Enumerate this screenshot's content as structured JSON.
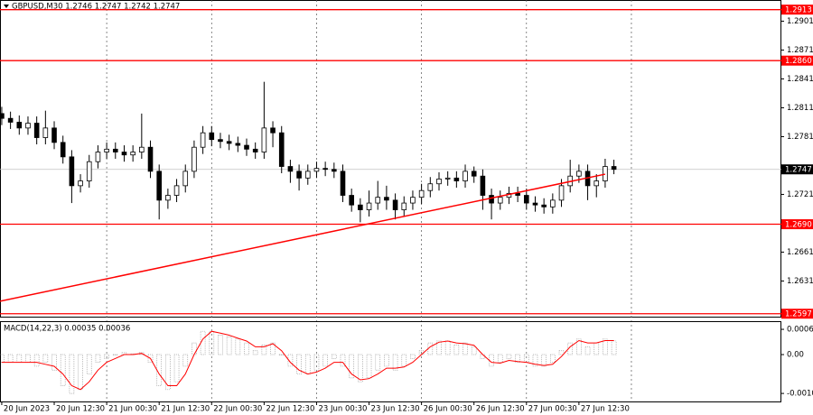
{
  "chart_data": [
    {
      "type": "candlestick",
      "title": "GBPUSD,M30  1.2746 1.2747 1.2742 1.2747",
      "color": "#000000",
      "level_color": "#ff0000",
      "open": [
        1.2805,
        1.28,
        1.2796,
        1.279,
        1.2795,
        1.278,
        1.279,
        1.2775,
        1.276,
        1.273,
        1.2735,
        1.2755,
        1.2765,
        1.2768,
        1.2765,
        1.2762,
        1.2765,
        1.277,
        1.2745,
        1.2715,
        1.272,
        1.273,
        1.2745,
        1.277,
        1.2785,
        1.2778,
        1.2776,
        1.2774,
        1.2772,
        1.2768,
        1.2765,
        1.279,
        1.2785,
        1.275,
        1.2745,
        1.2738,
        1.2745,
        1.2748,
        1.2747,
        1.2745,
        1.272,
        1.271,
        1.2705,
        1.2712,
        1.2718,
        1.2715,
        1.2705,
        1.2712,
        1.2718,
        1.2725,
        1.2732,
        1.2737,
        1.2738,
        1.2735,
        1.2745,
        1.274,
        1.272,
        1.2712,
        1.2718,
        1.2722,
        1.272,
        1.2712,
        1.271,
        1.2708,
        1.2715,
        1.273,
        1.274,
        1.2745,
        1.273,
        1.2735,
        1.275
      ],
      "high": [
        1.2812,
        1.2807,
        1.2803,
        1.2802,
        1.2802,
        1.2808,
        1.2797,
        1.2782,
        1.2767,
        1.2742,
        1.2762,
        1.2772,
        1.2775,
        1.2775,
        1.2772,
        1.2772,
        1.2805,
        1.2777,
        1.2752,
        1.2727,
        1.2737,
        1.2752,
        1.2777,
        1.2792,
        1.2792,
        1.2785,
        1.2783,
        1.2781,
        1.2779,
        1.2775,
        1.2838,
        1.2797,
        1.2792,
        1.2757,
        1.2752,
        1.2752,
        1.2755,
        1.2755,
        1.2754,
        1.2752,
        1.2727,
        1.2717,
        1.2725,
        1.2735,
        1.273,
        1.2722,
        1.2719,
        1.2725,
        1.2732,
        1.2739,
        1.2744,
        1.2745,
        1.2745,
        1.2752,
        1.275,
        1.2747,
        1.2727,
        1.2725,
        1.2729,
        1.2729,
        1.2727,
        1.2719,
        1.2717,
        1.2722,
        1.2737,
        1.2757,
        1.2752,
        1.2752,
        1.2742,
        1.2758,
        1.2757
      ],
      "low": [
        1.2793,
        1.2789,
        1.2783,
        1.2783,
        1.2773,
        1.2773,
        1.2768,
        1.2753,
        1.2712,
        1.2723,
        1.2728,
        1.2748,
        1.2758,
        1.2758,
        1.2755,
        1.2755,
        1.2758,
        1.2738,
        1.2695,
        1.2706,
        1.2713,
        1.2723,
        1.2738,
        1.2763,
        1.2771,
        1.2769,
        1.2767,
        1.2765,
        1.2761,
        1.2758,
        1.2758,
        1.277,
        1.2743,
        1.2733,
        1.2725,
        1.2731,
        1.2738,
        1.274,
        1.2738,
        1.2713,
        1.2703,
        1.2692,
        1.2698,
        1.2705,
        1.2705,
        1.2695,
        1.2698,
        1.2705,
        1.2711,
        1.2718,
        1.2725,
        1.273,
        1.2728,
        1.2728,
        1.2733,
        1.2705,
        1.2695,
        1.2705,
        1.2711,
        1.2713,
        1.2705,
        1.2703,
        1.2701,
        1.2701,
        1.2708,
        1.2723,
        1.2733,
        1.2715,
        1.2718,
        1.2728,
        1.2742
      ],
      "close": [
        1.28,
        1.2796,
        1.279,
        1.2795,
        1.278,
        1.279,
        1.2775,
        1.276,
        1.273,
        1.2735,
        1.2755,
        1.2765,
        1.2768,
        1.2765,
        1.2762,
        1.2765,
        1.277,
        1.2745,
        1.2715,
        1.272,
        1.273,
        1.2745,
        1.277,
        1.2785,
        1.2778,
        1.2776,
        1.2774,
        1.2772,
        1.2768,
        1.2765,
        1.279,
        1.2785,
        1.275,
        1.2745,
        1.2738,
        1.2745,
        1.2748,
        1.2747,
        1.2745,
        1.272,
        1.271,
        1.2705,
        1.2712,
        1.2718,
        1.2715,
        1.2705,
        1.2712,
        1.2718,
        1.2725,
        1.2732,
        1.2737,
        1.2738,
        1.2735,
        1.2745,
        1.274,
        1.272,
        1.2712,
        1.2718,
        1.2722,
        1.272,
        1.2712,
        1.271,
        1.2708,
        1.2715,
        1.273,
        1.274,
        1.2745,
        1.273,
        1.2735,
        1.275,
        1.2747
      ],
      "xlim": [
        -0.2,
        89.15
      ],
      "ylim": [
        1.2593,
        1.2923
      ],
      "yticks": [
        1.2901,
        1.2871,
        1.2841,
        1.2811,
        1.2781,
        1.2721,
        1.2661,
        1.2631
      ],
      "xgrid": [
        12,
        24,
        36,
        48,
        60,
        72
      ],
      "levels": [
        1.2913,
        {
          "value": 1.286,
          "label": "1.2860"
        },
        {
          "value": 1.269,
          "label": "1.2690"
        },
        1.2597
      ],
      "current_price": 1.2747,
      "trendline": {
        "x": [
          -0.2,
          69
        ],
        "y": [
          1.261,
          1.2742
        ]
      },
      "xticks": [
        {
          "value": 0,
          "label": "20 Jun 2023"
        },
        {
          "value": 6,
          "label": "20 Jun 12:30"
        },
        {
          "value": 12,
          "label": "21 Jun 00:30"
        },
        {
          "value": 18,
          "label": "21 Jun 12:30"
        },
        {
          "value": 24,
          "label": "22 Jun 00:30"
        },
        {
          "value": 30,
          "label": "22 Jun 12:30"
        },
        {
          "value": 36,
          "label": "23 Jun 00:30"
        },
        {
          "value": 42,
          "label": "23 Jun 12:30"
        },
        {
          "value": 48,
          "label": "26 Jun 00:30"
        },
        {
          "value": 54,
          "label": "26 Jun 12:30"
        },
        {
          "value": 60,
          "label": "27 Jun 00:30"
        },
        {
          "value": 66,
          "label": "27 Jun 12:30"
        }
      ]
    },
    {
      "type": "macd",
      "title": "MACD(14,22,3)  0.00035 0.00036",
      "color": "#a0a0a0",
      "signal_color": "#ff0000",
      "histogram": [
        -0.0002,
        -0.0002,
        -0.0002,
        -0.0002,
        -0.0003,
        -0.0002,
        -0.0004,
        -0.0008,
        -0.001,
        -0.0009,
        -0.0005,
        -0.0002,
        -0.0001,
        0,
        5e-05,
        2e-05,
        5e-05,
        -0.0002,
        -0.0008,
        -0.0009,
        -0.0007,
        -0.0003,
        0.0003,
        0.0006,
        0.0006,
        0.0005,
        0.00045,
        0.0004,
        0.0003,
        0.0001,
        0.00025,
        0.0003,
        0,
        -0.0003,
        -0.0005,
        -0.0005,
        -0.0004,
        -0.0003,
        -0.0001,
        -0.0003,
        -0.0006,
        -0.0007,
        -0.0006,
        -0.0004,
        -0.0003,
        -0.0004,
        -0.0003,
        -0.0001,
        0.0001,
        0.0003,
        0.00035,
        0.00035,
        0.00025,
        0.0003,
        0.0002,
        -0.0001,
        -0.0003,
        -0.0002,
        -0.0001,
        -0.0002,
        -0.0002,
        -0.0003,
        -0.0003,
        -0.0002,
        0.0001,
        0.0003,
        0.0004,
        0.0002,
        0.0003,
        0.0004,
        0.00035
      ],
      "signal": [
        -0.0002,
        -0.0002,
        -0.0002,
        -0.0002,
        -0.0002,
        -0.00025,
        -0.0003,
        -0.0005,
        -0.0008,
        -0.0009,
        -0.0007,
        -0.0004,
        -0.0002,
        -0.0001,
        0,
        0,
        3e-05,
        -0.0001,
        -0.0005,
        -0.0008,
        -0.0008,
        -0.0005,
        0,
        0.0004,
        0.0006,
        0.00055,
        0.0005,
        0.00042,
        0.00035,
        0.0002,
        0.0002,
        0.00028,
        0.0001,
        -0.0002,
        -0.0004,
        -0.0005,
        -0.00045,
        -0.00035,
        -0.0002,
        -0.0002,
        -0.0005,
        -0.00065,
        -0.00062,
        -0.0005,
        -0.00035,
        -0.00035,
        -0.00032,
        -0.0002,
        0,
        0.0002,
        0.00032,
        0.00035,
        0.0003,
        0.00028,
        0.00024,
        0,
        -0.0002,
        -0.00022,
        -0.00015,
        -0.00018,
        -0.0002,
        -0.00025,
        -0.00028,
        -0.00025,
        -5e-05,
        0.0002,
        0.00036,
        0.0003,
        0.0003,
        0.00036,
        0.00036
      ],
      "xlim": [
        -0.2,
        89.15
      ],
      "ylim": [
        -0.00123,
        0.00086
      ],
      "yticks": [
        0.00065,
        {
          "value": 0,
          "label": "0.00"
        },
        {
          "value": -0.001,
          "label": "-0.0010"
        }
      ]
    }
  ]
}
